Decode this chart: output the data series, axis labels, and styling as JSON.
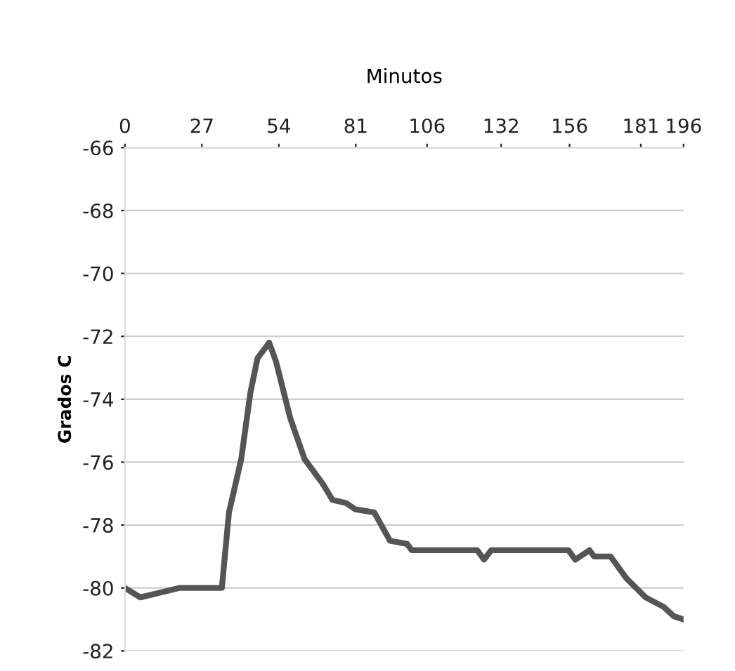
{
  "chart_data": {
    "type": "line",
    "xlabel": "Minutos",
    "ylabel": "Grados C",
    "xlim": [
      0,
      196
    ],
    "xticks": [
      0,
      27,
      54,
      81,
      106,
      132,
      156,
      181,
      196
    ],
    "ylim": [
      -82,
      -66
    ],
    "yticks": [
      -66,
      -68,
      -70,
      -72,
      -74,
      -76,
      -78,
      -80,
      -82
    ],
    "grid": "y",
    "legend": false,
    "marker": "none",
    "line_style": "solid",
    "series": [
      {
        "color": "#555555",
        "x": [
          0,
          5.4,
          19,
          34,
          36.5,
          40.8,
          44,
          46.5,
          50.6,
          53,
          58,
          63,
          69.5,
          72.8,
          77.6,
          80.8,
          87.5,
          93,
          99,
          100.6,
          123.6,
          126,
          128.5,
          155.6,
          158,
          163,
          164.6,
          170.4,
          176,
          182.7,
          189,
          192.6,
          196
        ],
        "values": [
          -80.0,
          -80.3,
          -80.0,
          -80.0,
          -77.6,
          -75.9,
          -73.8,
          -72.7,
          -72.2,
          -72.8,
          -74.6,
          -75.9,
          -76.7,
          -77.2,
          -77.3,
          -77.5,
          -77.6,
          -78.5,
          -78.6,
          -78.8,
          -78.8,
          -79.1,
          -78.8,
          -78.8,
          -79.1,
          -78.8,
          -79.0,
          -79.0,
          -79.7,
          -80.3,
          -80.6,
          -80.9,
          -81.0
        ]
      }
    ]
  }
}
